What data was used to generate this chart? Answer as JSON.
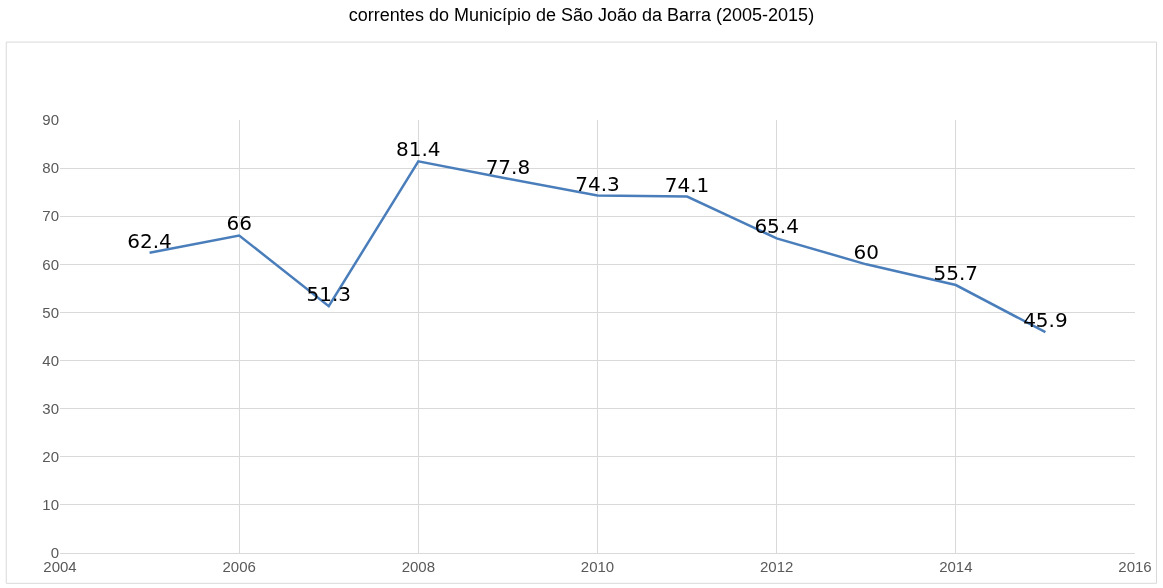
{
  "chart_data": {
    "type": "line",
    "title": "correntes do Município de São João da Barra (2005-2015)",
    "x": [
      2005,
      2006,
      2007,
      2008,
      2009,
      2010,
      2011,
      2012,
      2013,
      2014,
      2015
    ],
    "series": [
      {
        "color": "#4a7ebb",
        "values": [
          62.4,
          66,
          51.3,
          81.4,
          77.8,
          74.3,
          74.1,
          65.4,
          60,
          55.7,
          45.9
        ]
      }
    ],
    "xlim": [
      2004,
      2016
    ],
    "xticks": [
      2004,
      2006,
      2008,
      2010,
      2012,
      2014,
      2016
    ],
    "ylim": [
      0,
      90
    ],
    "yticks": [
      0,
      10,
      20,
      30,
      40,
      50,
      60,
      70,
      80,
      90
    ],
    "grid": true,
    "data_labels": true,
    "marker": "none",
    "line_style": "solid"
  }
}
